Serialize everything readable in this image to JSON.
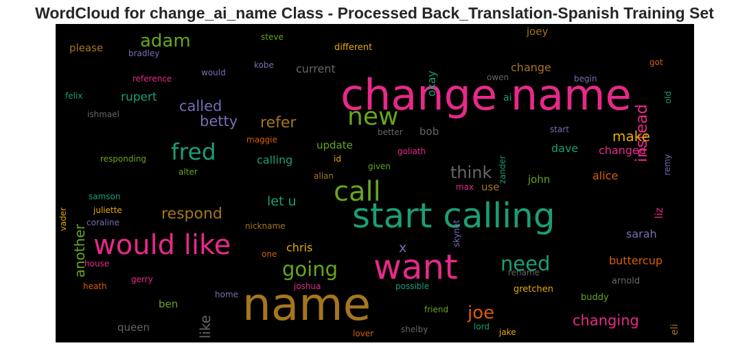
{
  "title": "WordCloud for change_ai_name Class - Processed Back_Translation-Spanish Training Set",
  "chart_data": {
    "type": "wordcloud",
    "title": "WordCloud for change_ai_name Class - Processed Back_Translation-Spanish Training Set",
    "words": [
      {
        "text": "change name",
        "weight": 100,
        "color": "#e7298a"
      },
      {
        "text": "start calling",
        "weight": 88,
        "color": "#1b9e77"
      },
      {
        "text": "name",
        "weight": 95,
        "color": "#a6761d"
      },
      {
        "text": "want",
        "weight": 75,
        "color": "#e7298a"
      },
      {
        "text": "would like",
        "weight": 62,
        "color": "#e7298a"
      },
      {
        "text": "call",
        "weight": 60,
        "color": "#66a61e"
      },
      {
        "text": "new",
        "weight": 52,
        "color": "#66a61e"
      },
      {
        "text": "fred",
        "weight": 45,
        "color": "#1b9e77"
      },
      {
        "text": "need",
        "weight": 40,
        "color": "#1b9e77"
      },
      {
        "text": "going",
        "weight": 40,
        "color": "#66a61e"
      },
      {
        "text": "joe",
        "weight": 36,
        "color": "#d95f02"
      },
      {
        "text": "think",
        "weight": 35,
        "color": "#666666"
      },
      {
        "text": "adam",
        "weight": 34,
        "color": "#66a61e"
      },
      {
        "text": "instead",
        "weight": 34,
        "color": "#e7298a"
      },
      {
        "text": "refer",
        "weight": 30,
        "color": "#a6761d"
      },
      {
        "text": "respond",
        "weight": 30,
        "color": "#a6761d"
      },
      {
        "text": "called",
        "weight": 28,
        "color": "#7570b3"
      },
      {
        "text": "betty",
        "weight": 28,
        "color": "#7570b3"
      },
      {
        "text": "changing",
        "weight": 28,
        "color": "#e7298a"
      },
      {
        "text": "another",
        "weight": 27,
        "color": "#66a61e"
      },
      {
        "text": "like",
        "weight": 27,
        "color": "#666666"
      },
      {
        "text": "make",
        "weight": 24,
        "color": "#e6ab02"
      },
      {
        "text": "let u",
        "weight": 23,
        "color": "#1b9e77"
      },
      {
        "text": "x",
        "weight": 22,
        "color": "#7570b3"
      },
      {
        "text": "rupert",
        "weight": 21,
        "color": "#1b9e77"
      },
      {
        "text": "buttercup",
        "weight": 20,
        "color": "#d95f02"
      },
      {
        "text": "okay",
        "weight": 20,
        "color": "#1b9e77"
      },
      {
        "text": "current",
        "weight": 19,
        "color": "#666666"
      },
      {
        "text": "chris",
        "weight": 19,
        "color": "#e6ab02"
      },
      {
        "text": "alice",
        "weight": 19,
        "color": "#d95f02"
      },
      {
        "text": "changed",
        "weight": 19,
        "color": "#e7298a"
      },
      {
        "text": "sarah",
        "weight": 18,
        "color": "#7570b3"
      },
      {
        "text": "change",
        "weight": 18,
        "color": "#a6761d"
      },
      {
        "text": "calling",
        "weight": 18,
        "color": "#1b9e77"
      },
      {
        "text": "dave",
        "weight": 17,
        "color": "#1b9e77"
      },
      {
        "text": "joey",
        "weight": 17,
        "color": "#a6761d"
      },
      {
        "text": "update",
        "weight": 17,
        "color": "#66a61e"
      },
      {
        "text": "bob",
        "weight": 17,
        "color": "#666666"
      },
      {
        "text": "john",
        "weight": 17,
        "color": "#66a61e"
      },
      {
        "text": "ben",
        "weight": 17,
        "color": "#66a61e"
      },
      {
        "text": "queen",
        "weight": 17,
        "color": "#666666"
      },
      {
        "text": "please",
        "weight": 16,
        "color": "#a6761d"
      },
      {
        "text": "use",
        "weight": 16,
        "color": "#a6761d"
      },
      {
        "text": "liz",
        "weight": 16,
        "color": "#e7298a"
      },
      {
        "text": "eli",
        "weight": 15,
        "color": "#a6761d"
      },
      {
        "text": "ai",
        "weight": 15,
        "color": "#1b9e77"
      },
      {
        "text": "gretchen",
        "weight": 13,
        "color": "#e6ab02"
      },
      {
        "text": "buddy",
        "weight": 13,
        "color": "#66a61e"
      },
      {
        "text": "arnold",
        "weight": 13,
        "color": "#666666"
      },
      {
        "text": "different",
        "weight": 13,
        "color": "#e6ab02"
      },
      {
        "text": "steve",
        "weight": 12,
        "color": "#66a61e"
      },
      {
        "text": "bradley",
        "weight": 12,
        "color": "#7570b3"
      },
      {
        "text": "would",
        "weight": 12,
        "color": "#7570b3"
      },
      {
        "text": "kobe",
        "weight": 12,
        "color": "#7570b3"
      },
      {
        "text": "reference",
        "weight": 12,
        "color": "#e7298a"
      },
      {
        "text": "owen",
        "weight": 12,
        "color": "#666666"
      },
      {
        "text": "begin",
        "weight": 12,
        "color": "#7570b3"
      },
      {
        "text": "got",
        "weight": 12,
        "color": "#d95f02"
      },
      {
        "text": "old",
        "weight": 12,
        "color": "#1b9e77"
      },
      {
        "text": "felix",
        "weight": 12,
        "color": "#1b9e77"
      },
      {
        "text": "ishmael",
        "weight": 12,
        "color": "#666666"
      },
      {
        "text": "better",
        "weight": 12,
        "color": "#666666"
      },
      {
        "text": "start",
        "weight": 12,
        "color": "#7570b3"
      },
      {
        "text": "maggie",
        "weight": 12,
        "color": "#d95f02"
      },
      {
        "text": "zander",
        "weight": 12,
        "color": "#1b9e77"
      },
      {
        "text": "remy",
        "weight": 12,
        "color": "#7570b3"
      },
      {
        "text": "responding",
        "weight": 12,
        "color": "#66a61e"
      },
      {
        "text": "id",
        "weight": 12,
        "color": "#e6ab02"
      },
      {
        "text": "goliath",
        "weight": 12,
        "color": "#e7298a"
      },
      {
        "text": "alter",
        "weight": 12,
        "color": "#66a61e"
      },
      {
        "text": "given",
        "weight": 12,
        "color": "#66a61e"
      },
      {
        "text": "allan",
        "weight": 12,
        "color": "#a6761d"
      },
      {
        "text": "max",
        "weight": 12,
        "color": "#e7298a"
      },
      {
        "text": "skynet",
        "weight": 12,
        "color": "#7570b3"
      },
      {
        "text": "vader",
        "weight": 12,
        "color": "#e6ab02"
      },
      {
        "text": "samson",
        "weight": 12,
        "color": "#1b9e77"
      },
      {
        "text": "juliette",
        "weight": 12,
        "color": "#e6ab02"
      },
      {
        "text": "coraline",
        "weight": 12,
        "color": "#7570b3"
      },
      {
        "text": "nickname",
        "weight": 12,
        "color": "#a6761d"
      },
      {
        "text": "one",
        "weight": 12,
        "color": "#d95f02"
      },
      {
        "text": "house",
        "weight": 12,
        "color": "#e7298a"
      },
      {
        "text": "rename",
        "weight": 12,
        "color": "#666666"
      },
      {
        "text": "heath",
        "weight": 12,
        "color": "#d95f02"
      },
      {
        "text": "gerry",
        "weight": 12,
        "color": "#e7298a"
      },
      {
        "text": "joshua",
        "weight": 12,
        "color": "#e7298a"
      },
      {
        "text": "possible",
        "weight": 12,
        "color": "#1b9e77"
      },
      {
        "text": "home",
        "weight": 12,
        "color": "#7570b3"
      },
      {
        "text": "friend",
        "weight": 12,
        "color": "#66a61e"
      },
      {
        "text": "lover",
        "weight": 12,
        "color": "#d95f02"
      },
      {
        "text": "shelby",
        "weight": 12,
        "color": "#666666"
      },
      {
        "text": "lord",
        "weight": 12,
        "color": "#1b9e77"
      },
      {
        "text": "jake",
        "weight": 12,
        "color": "#e6ab02"
      }
    ]
  }
}
